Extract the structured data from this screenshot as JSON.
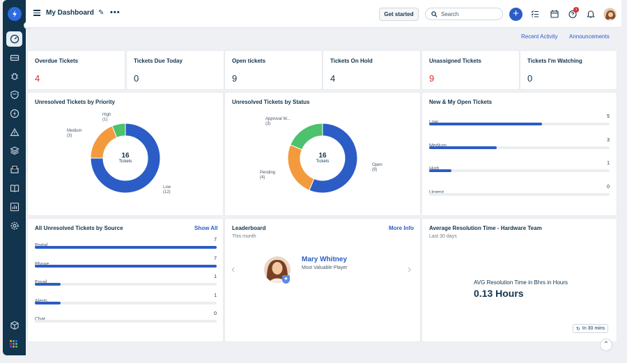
{
  "header": {
    "title": "My Dashboard",
    "get_started": "Get started",
    "search_placeholder": "Search",
    "notifications_badge": "1"
  },
  "links": {
    "recent_activity": "Recent Activity",
    "announcements": "Announcements"
  },
  "stats": [
    {
      "label": "Overdue Tickets",
      "value": "4",
      "alert": true
    },
    {
      "label": "Tickets Due Today",
      "value": "0",
      "alert": false
    },
    {
      "label": "Open tickets",
      "value": "9",
      "alert": false
    },
    {
      "label": "Tickets On Hold",
      "value": "4",
      "alert": false
    },
    {
      "label": "Unassigned Tickets",
      "value": "9",
      "alert": true
    },
    {
      "label": "Tickets I'm Watching",
      "value": "0",
      "alert": false
    }
  ],
  "priority_chart": {
    "title": "Unresolved Tickets by Priority",
    "center_value": "16",
    "center_label": "Tickets",
    "slices": [
      {
        "name": "Low",
        "count": "(12)",
        "value": 12,
        "color": "#2c5cc5"
      },
      {
        "name": "Medium",
        "count": "(3)",
        "value": 3,
        "color": "#f39a3d"
      },
      {
        "name": "High",
        "count": "(1)",
        "value": 1,
        "color": "#4cc26c"
      }
    ]
  },
  "status_chart": {
    "title": "Unresolved Tickets by Status",
    "center_value": "16",
    "center_label": "Tickets",
    "slices": [
      {
        "name": "Open",
        "count": "(9)",
        "value": 9,
        "color": "#2c5cc5"
      },
      {
        "name": "Pending",
        "count": "(4)",
        "value": 4,
        "color": "#f39a3d"
      },
      {
        "name": "Approval W...",
        "count": "(3)",
        "value": 3,
        "color": "#4cc26c"
      }
    ]
  },
  "open_tickets": {
    "title": "New & My Open Tickets",
    "max": 8,
    "rows": [
      {
        "label": "Low",
        "value": 5
      },
      {
        "label": "Medium",
        "value": 3
      },
      {
        "label": "High",
        "value": 1
      },
      {
        "label": "Urgent",
        "value": 0
      }
    ]
  },
  "source": {
    "title": "All Unresolved Tickets by Source",
    "show_all": "Show All",
    "max": 7,
    "rows": [
      {
        "label": "Portal",
        "value": 7
      },
      {
        "label": "Phone",
        "value": 7
      },
      {
        "label": "Email",
        "value": 1
      },
      {
        "label": "Alerts",
        "value": 1
      },
      {
        "label": "Chat",
        "value": 0
      }
    ]
  },
  "leaderboard": {
    "title": "Leaderboard",
    "more_info": "More Info",
    "period": "This month",
    "name": "Mary Whitney",
    "role": "Most Valuable Player"
  },
  "resolution": {
    "title": "Average Resolution Time - Hardware Team",
    "period": "Last 30 days",
    "metric_label": "AVG Resolution Time in Bhrs in Hours",
    "metric_value": "0.13 Hours",
    "refresh": "In 30 mins"
  },
  "colors": {
    "primary": "#2c5cc5",
    "sidebar": "#12344d",
    "alert": "#d72d30"
  }
}
